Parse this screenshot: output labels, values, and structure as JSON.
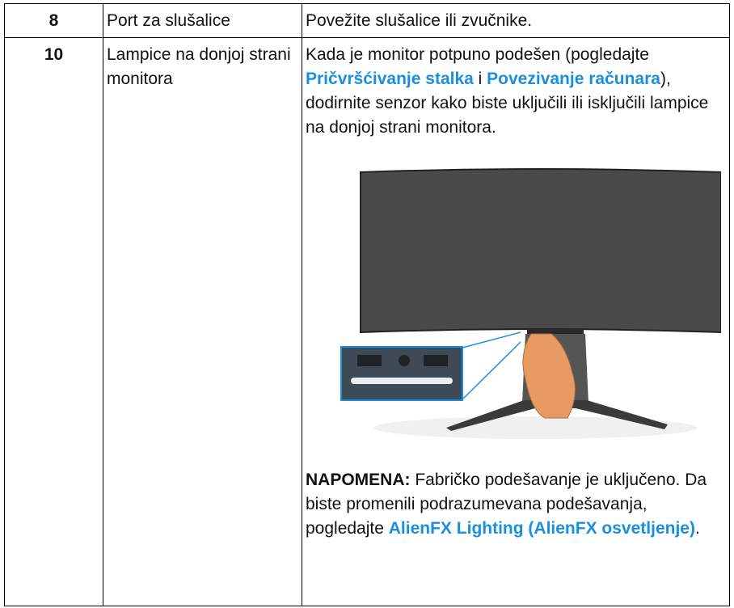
{
  "table": {
    "rows": [
      {
        "number": "8",
        "name": "Port za slušalice",
        "description": [
          "Povežite slušalice ili zvučnike."
        ]
      },
      {
        "number": "10",
        "name": "Lampice na donjoj strani monitora",
        "description": [
          "Kada je monitor potpuno podešen (pogledajte ",
          "Pričvršćivanje stalka",
          " i ",
          "Povezivanje računara",
          "), dodirnite senzor kako biste uključili ili isključili lampice na donjoj strani monitora."
        ],
        "note": {
          "label": "NAPOMENA:",
          "text": [
            " Fabričko podešavanje je uključeno. Da biste promenili podrazumevana podešavanja, pogledajte ",
            "AlienFX Lighting (AlienFX osvetljenje)",
            "."
          ]
        }
      }
    ]
  }
}
